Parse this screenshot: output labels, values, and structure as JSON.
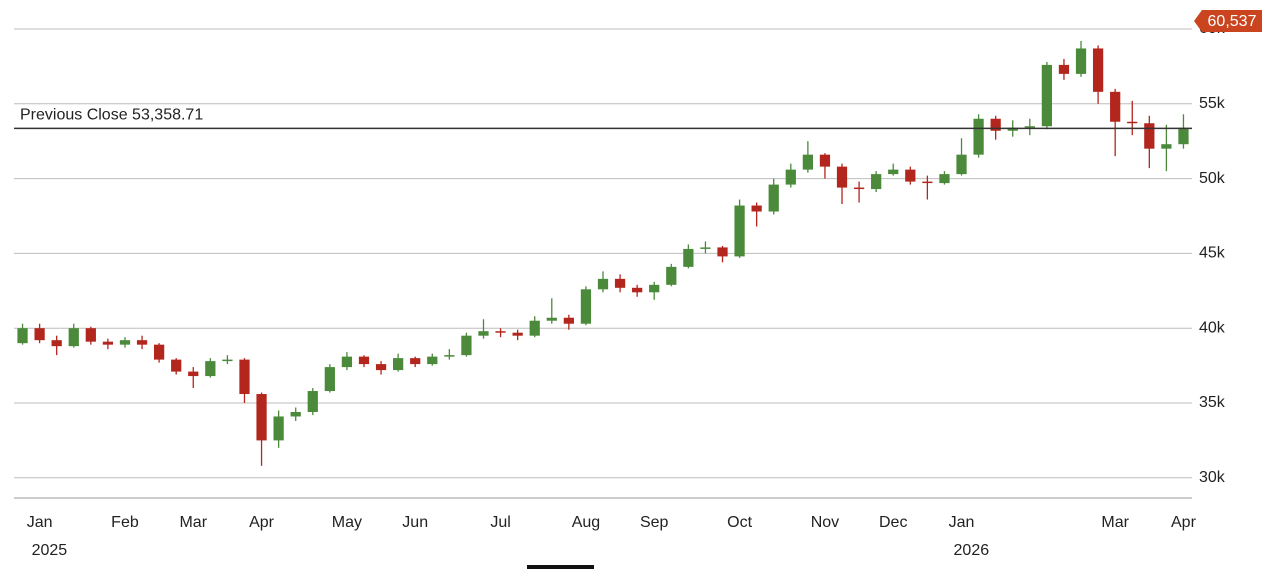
{
  "chart_data": {
    "type": "candlestick",
    "categories": [
      null,
      "Jan",
      null,
      null,
      null,
      null,
      "Feb",
      null,
      null,
      null,
      "Mar",
      null,
      null,
      null,
      "Apr",
      null,
      null,
      null,
      null,
      "May",
      null,
      null,
      null,
      "Jun",
      null,
      null,
      null,
      null,
      "Jul",
      null,
      null,
      null,
      null,
      "Aug",
      null,
      null,
      null,
      "Sep",
      null,
      null,
      null,
      null,
      "Oct",
      null,
      null,
      null,
      null,
      "Nov",
      null,
      null,
      null,
      "Dec",
      null,
      null,
      null,
      "Jan",
      null,
      null,
      null,
      null,
      null,
      null,
      null,
      null,
      "Mar",
      null,
      null,
      null,
      "Apr"
    ],
    "years": [
      null,
      "2025",
      null,
      null,
      null,
      null,
      null,
      null,
      null,
      null,
      null,
      null,
      null,
      null,
      null,
      null,
      null,
      null,
      null,
      null,
      null,
      null,
      null,
      null,
      null,
      null,
      null,
      null,
      null,
      null,
      null,
      null,
      null,
      null,
      null,
      null,
      null,
      null,
      null,
      null,
      null,
      null,
      null,
      null,
      null,
      null,
      null,
      null,
      null,
      null,
      null,
      null,
      null,
      null,
      null,
      "2026",
      null,
      null,
      null,
      null,
      null,
      null,
      null,
      null,
      null,
      null,
      null,
      null,
      null
    ],
    "open": [
      39000,
      40000,
      39200,
      38800,
      40000,
      39100,
      38900,
      39200,
      38900,
      37900,
      37100,
      36800,
      37800,
      37900,
      35600,
      32500,
      34100,
      34400,
      35800,
      37400,
      38100,
      37600,
      37200,
      38000,
      37600,
      38100,
      38200,
      39500,
      39800,
      39700,
      39500,
      40500,
      40700,
      40300,
      42600,
      43300,
      42700,
      42400,
      42900,
      44100,
      45300,
      45400,
      44800,
      48200,
      47800,
      49600,
      50600,
      51600,
      50800,
      49400,
      49300,
      50300,
      50600,
      49800,
      49700,
      50300,
      51600,
      54000,
      53200,
      53400,
      53500,
      57600,
      57000,
      58700,
      55800,
      53800,
      53700,
      52000,
      52300
    ],
    "high": [
      40300,
      40300,
      39500,
      40300,
      40100,
      39300,
      39400,
      39500,
      39000,
      38000,
      37400,
      38000,
      38200,
      38000,
      35700,
      34500,
      34700,
      36000,
      37600,
      38400,
      38200,
      37800,
      38300,
      38100,
      38300,
      38600,
      39700,
      40600,
      40000,
      39900,
      40800,
      42000,
      40900,
      42800,
      43800,
      43600,
      42900,
      43100,
      44300,
      45600,
      45800,
      45500,
      48600,
      48400,
      50000,
      51000,
      52500,
      51700,
      51000,
      49800,
      50500,
      51000,
      50800,
      50200,
      50500,
      52700,
      54300,
      54200,
      53900,
      54000,
      57800,
      58000,
      59200,
      58900,
      56000,
      55200,
      54200,
      53600,
      54300
    ],
    "low": [
      38900,
      39000,
      38200,
      38700,
      38900,
      38600,
      38700,
      38600,
      37700,
      36900,
      36000,
      36700,
      37600,
      35000,
      30800,
      32000,
      33800,
      34200,
      35700,
      37200,
      37400,
      36900,
      37100,
      37400,
      37500,
      37900,
      38100,
      39300,
      39400,
      39200,
      39400,
      40300,
      39900,
      40200,
      42400,
      42400,
      42100,
      41900,
      42800,
      44000,
      45000,
      44400,
      44700,
      46800,
      47600,
      49400,
      50400,
      50000,
      48300,
      48400,
      49100,
      50200,
      49600,
      48600,
      49600,
      50200,
      51400,
      52600,
      52800,
      52900,
      53300,
      56600,
      56800,
      55000,
      51500,
      52900,
      50700,
      50500,
      52000
    ],
    "close": [
      40000,
      39200,
      38800,
      40000,
      39100,
      38900,
      39200,
      38900,
      37900,
      37100,
      36800,
      37800,
      37900,
      35600,
      32500,
      34100,
      34400,
      35800,
      37400,
      38100,
      37600,
      37200,
      38000,
      37600,
      38100,
      38200,
      39500,
      39800,
      39700,
      39500,
      40500,
      40700,
      40300,
      42600,
      43300,
      42700,
      42400,
      42900,
      44100,
      45300,
      45400,
      44800,
      48200,
      47800,
      49600,
      50600,
      51600,
      50800,
      49400,
      49300,
      50300,
      50600,
      49800,
      49700,
      50300,
      51600,
      54000,
      53200,
      53400,
      53500,
      57600,
      57000,
      58700,
      55800,
      53800,
      53700,
      52000,
      52300,
      53400
    ],
    "up_color": "#4a8a3a",
    "down_color": "#b3261e",
    "ylim": [
      28650,
      61270
    ],
    "yticks": [
      {
        "value": 30000,
        "label": "30k"
      },
      {
        "value": 35000,
        "label": "35k"
      },
      {
        "value": 40000,
        "label": "40k"
      },
      {
        "value": 45000,
        "label": "45k"
      },
      {
        "value": 50000,
        "label": "50k"
      },
      {
        "value": 55000,
        "label": "55k"
      },
      {
        "value": 60000,
        "label": "60k"
      }
    ],
    "grid": true,
    "previous_close": {
      "value": 53358.71,
      "label": "Previous Close 53,358.71"
    },
    "price_tag": {
      "value": 60537,
      "label": "60,537",
      "color": "#c9441f"
    }
  }
}
